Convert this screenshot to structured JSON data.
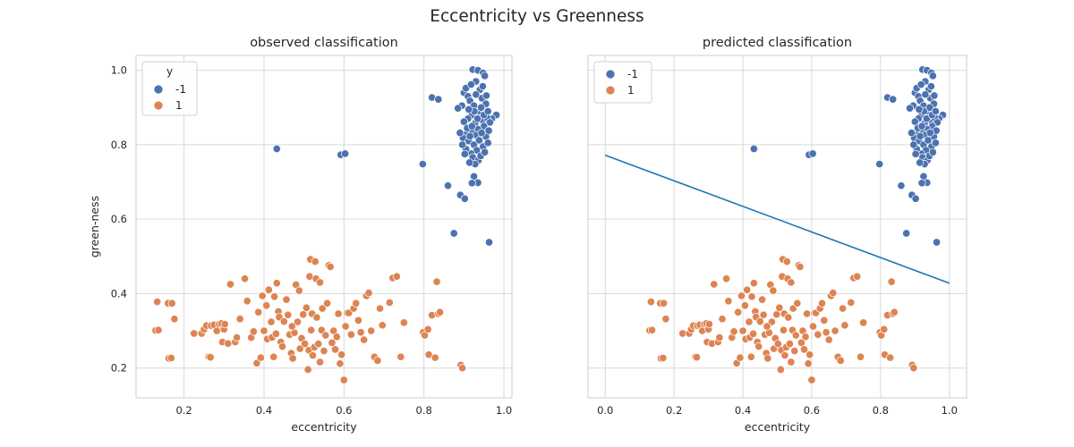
{
  "figure": {
    "suptitle": "Eccentricity vs Greenness"
  },
  "colors": {
    "class_neg": "#4c72b0",
    "class_pos": "#dd8452",
    "boundary": "#1f77b4",
    "grid": "#d9d9d9",
    "spine": "#cccccc"
  },
  "chart_data": [
    {
      "type": "scatter",
      "title": "observed classification",
      "xlabel": "eccentricity",
      "ylabel": "green-ness",
      "xlim": [
        0.08,
        1.02
      ],
      "ylim": [
        0.12,
        1.04
      ],
      "xticks": [
        0.2,
        0.4,
        0.6,
        0.8,
        1.0
      ],
      "xtick_labels": [
        "0.2",
        "0.4",
        "0.6",
        "0.8",
        "1.0"
      ],
      "yticks": [
        0.2,
        0.4,
        0.6,
        0.8,
        1.0
      ],
      "ytick_labels": [
        "0.2",
        "0.4",
        "0.6",
        "0.8",
        "1.0"
      ],
      "grid": true,
      "legend": {
        "title": "y",
        "placement": "top-left",
        "entries": [
          "-1",
          "1"
        ]
      },
      "series": [
        {
          "name": "-1",
          "color_key": "class_neg",
          "points": [
            [
              0.432,
              0.789
            ],
            [
              0.592,
              0.773
            ],
            [
              0.603,
              0.776
            ],
            [
              0.797,
              0.748
            ],
            [
              0.82,
              0.927
            ],
            [
              0.836,
              0.922
            ],
            [
              0.86,
              0.69
            ],
            [
              0.875,
              0.562
            ],
            [
              0.891,
              0.665
            ],
            [
              0.902,
              0.655
            ],
            [
              0.963,
              0.538
            ],
            [
              0.981,
              0.88
            ],
            [
              0.97,
              0.87
            ],
            [
              0.922,
              1.002
            ],
            [
              0.935,
              1.0
            ],
            [
              0.948,
              0.993
            ],
            [
              0.952,
              0.985
            ],
            [
              0.9,
              0.94
            ],
            [
              0.905,
              0.952
            ],
            [
              0.91,
              0.93
            ],
            [
              0.915,
              0.918
            ],
            [
              0.93,
              0.97
            ],
            [
              0.925,
              0.905
            ],
            [
              0.895,
              0.905
            ],
            [
              0.885,
              0.898
            ],
            [
              0.94,
              0.948
            ],
            [
              0.945,
              0.925
            ],
            [
              0.955,
              0.91
            ],
            [
              0.938,
              0.89
            ],
            [
              0.92,
              0.88
            ],
            [
              0.91,
              0.87
            ],
            [
              0.9,
              0.862
            ],
            [
              0.928,
              0.858
            ],
            [
              0.946,
              0.866
            ],
            [
              0.958,
              0.872
            ],
            [
              0.965,
              0.86
            ],
            [
              0.95,
              0.85
            ],
            [
              0.935,
              0.842
            ],
            [
              0.918,
              0.836
            ],
            [
              0.905,
              0.828
            ],
            [
              0.898,
              0.818
            ],
            [
              0.912,
              0.81
            ],
            [
              0.925,
              0.8
            ],
            [
              0.94,
              0.812
            ],
            [
              0.955,
              0.822
            ],
            [
              0.962,
              0.838
            ],
            [
              0.948,
              0.795
            ],
            [
              0.932,
              0.785
            ],
            [
              0.918,
              0.776
            ],
            [
              0.905,
              0.788
            ],
            [
              0.896,
              0.8
            ],
            [
              0.922,
              0.766
            ],
            [
              0.936,
              0.758
            ],
            [
              0.928,
              0.748
            ],
            [
              0.914,
              0.752
            ],
            [
              0.942,
              0.77
            ],
            [
              0.952,
              0.78
            ],
            [
              0.96,
              0.805
            ],
            [
              0.908,
              0.845
            ],
            [
              0.89,
              0.832
            ],
            [
              0.93,
              0.826
            ],
            [
              0.944,
              0.832
            ],
            [
              0.92,
              0.85
            ],
            [
              0.934,
              0.87
            ],
            [
              0.926,
              0.89
            ],
            [
              0.912,
              0.895
            ],
            [
              0.943,
              0.9
            ],
            [
              0.956,
              0.932
            ],
            [
              0.93,
              0.935
            ],
            [
              0.918,
              0.962
            ],
            [
              0.925,
              0.715
            ],
            [
              0.935,
              0.698
            ],
            [
              0.92,
              0.697
            ],
            [
              0.902,
              0.775
            ],
            [
              0.95,
              0.88
            ],
            [
              0.96,
              0.89
            ],
            [
              0.938,
              0.812
            ],
            [
              0.915,
              0.823
            ],
            [
              0.947,
              0.957
            ]
          ]
        },
        {
          "name": "1",
          "color_key": "class_pos",
          "points": [
            [
              0.129,
              0.301
            ],
            [
              0.133,
              0.378
            ],
            [
              0.136,
              0.302
            ],
            [
              0.16,
              0.374
            ],
            [
              0.162,
              0.226
            ],
            [
              0.168,
              0.227
            ],
            [
              0.17,
              0.374
            ],
            [
              0.176,
              0.332
            ],
            [
              0.225,
              0.293
            ],
            [
              0.244,
              0.293
            ],
            [
              0.25,
              0.304
            ],
            [
              0.256,
              0.314
            ],
            [
              0.262,
              0.23
            ],
            [
              0.268,
              0.314
            ],
            [
              0.266,
              0.229
            ],
            [
              0.275,
              0.316
            ],
            [
              0.282,
              0.3
            ],
            [
              0.288,
              0.318
            ],
            [
              0.294,
              0.32
            ],
            [
              0.296,
              0.27
            ],
            [
              0.3,
              0.304
            ],
            [
              0.302,
              0.318
            ],
            [
              0.31,
              0.266
            ],
            [
              0.316,
              0.425
            ],
            [
              0.328,
              0.27
            ],
            [
              0.332,
              0.282
            ],
            [
              0.34,
              0.332
            ],
            [
              0.352,
              0.44
            ],
            [
              0.358,
              0.38
            ],
            [
              0.368,
              0.282
            ],
            [
              0.374,
              0.298
            ],
            [
              0.382,
              0.213
            ],
            [
              0.386,
              0.35
            ],
            [
              0.392,
              0.228
            ],
            [
              0.396,
              0.394
            ],
            [
              0.4,
              0.3
            ],
            [
              0.406,
              0.368
            ],
            [
              0.408,
              0.278
            ],
            [
              0.412,
              0.41
            ],
            [
              0.418,
              0.324
            ],
            [
              0.42,
              0.282
            ],
            [
              0.424,
              0.23
            ],
            [
              0.426,
              0.392
            ],
            [
              0.43,
              0.292
            ],
            [
              0.432,
              0.428
            ],
            [
              0.436,
              0.352
            ],
            [
              0.438,
              0.337
            ],
            [
              0.442,
              0.27
            ],
            [
              0.446,
              0.258
            ],
            [
              0.45,
              0.325
            ],
            [
              0.456,
              0.384
            ],
            [
              0.46,
              0.343
            ],
            [
              0.464,
              0.29
            ],
            [
              0.468,
              0.24
            ],
            [
              0.472,
              0.226
            ],
            [
              0.476,
              0.295
            ],
            [
              0.48,
              0.424
            ],
            [
              0.484,
              0.324
            ],
            [
              0.488,
              0.408
            ],
            [
              0.49,
              0.252
            ],
            [
              0.494,
              0.28
            ],
            [
              0.498,
              0.344
            ],
            [
              0.502,
              0.265
            ],
            [
              0.506,
              0.362
            ],
            [
              0.51,
              0.196
            ],
            [
              0.512,
              0.248
            ],
            [
              0.514,
              0.446
            ],
            [
              0.516,
              0.492
            ],
            [
              0.518,
              0.302
            ],
            [
              0.52,
              0.346
            ],
            [
              0.522,
              0.234
            ],
            [
              0.526,
              0.256
            ],
            [
              0.528,
              0.486
            ],
            [
              0.53,
              0.44
            ],
            [
              0.532,
              0.336
            ],
            [
              0.536,
              0.265
            ],
            [
              0.54,
              0.216
            ],
            [
              0.544,
              0.302
            ],
            [
              0.546,
              0.36
            ],
            [
              0.55,
              0.246
            ],
            [
              0.554,
              0.288
            ],
            [
              0.558,
              0.374
            ],
            [
              0.562,
              0.476
            ],
            [
              0.566,
              0.472
            ],
            [
              0.57,
              0.268
            ],
            [
              0.574,
              0.3
            ],
            [
              0.578,
              0.25
            ],
            [
              0.582,
              0.284
            ],
            [
              0.586,
              0.346
            ],
            [
              0.59,
              0.212
            ],
            [
              0.594,
              0.236
            ],
            [
              0.6,
              0.168
            ],
            [
              0.604,
              0.312
            ],
            [
              0.608,
              0.348
            ],
            [
              0.612,
              0.348
            ],
            [
              0.618,
              0.29
            ],
            [
              0.624,
              0.36
            ],
            [
              0.63,
              0.374
            ],
            [
              0.636,
              0.328
            ],
            [
              0.642,
              0.296
            ],
            [
              0.65,
              0.276
            ],
            [
              0.656,
              0.394
            ],
            [
              0.662,
              0.402
            ],
            [
              0.668,
              0.3
            ],
            [
              0.676,
              0.23
            ],
            [
              0.684,
              0.22
            ],
            [
              0.69,
              0.36
            ],
            [
              0.696,
              0.315
            ],
            [
              0.714,
              0.376
            ],
            [
              0.722,
              0.442
            ],
            [
              0.732,
              0.446
            ],
            [
              0.742,
              0.23
            ],
            [
              0.75,
              0.322
            ],
            [
              0.798,
              0.296
            ],
            [
              0.802,
              0.288
            ],
            [
              0.81,
              0.304
            ],
            [
              0.812,
              0.236
            ],
            [
              0.82,
              0.342
            ],
            [
              0.828,
              0.228
            ],
            [
              0.832,
              0.432
            ],
            [
              0.836,
              0.346
            ],
            [
              0.84,
              0.35
            ],
            [
              0.892,
              0.208
            ],
            [
              0.896,
              0.2
            ],
            [
              0.54,
              0.43
            ],
            [
              0.47,
              0.312
            ]
          ]
        }
      ]
    },
    {
      "type": "scatter",
      "title": "predicted classification",
      "xlabel": "eccentricity",
      "ylabel": "",
      "xlim": [
        -0.05,
        1.05
      ],
      "ylim": [
        0.12,
        1.04
      ],
      "xticks": [
        0.0,
        0.2,
        0.4,
        0.6,
        0.8,
        1.0
      ],
      "xtick_labels": [
        "0.0",
        "0.2",
        "0.4",
        "0.6",
        "0.8",
        "1.0"
      ],
      "yticks": [
        0.2,
        0.4,
        0.6,
        0.8,
        1.0
      ],
      "grid": true,
      "legend": {
        "title": "",
        "placement": "top-left",
        "entries": [
          "-1",
          "1"
        ]
      },
      "series_from": "observed",
      "line": {
        "x": [
          0.0,
          1.0
        ],
        "y": [
          0.772,
          0.428
        ],
        "color_key": "boundary"
      }
    }
  ]
}
